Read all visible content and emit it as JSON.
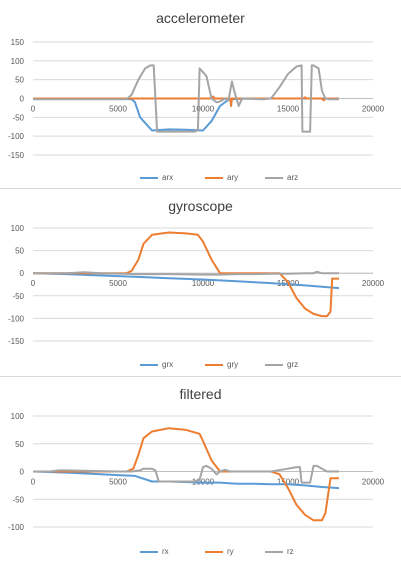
{
  "chart_data": [
    {
      "type": "line",
      "title": "accelerometer",
      "xlim": [
        0,
        20000
      ],
      "ylim": [
        -150,
        150
      ],
      "yticks": [
        150,
        100,
        50,
        0,
        -50,
        -100,
        -150
      ],
      "xticks": [
        0,
        5000,
        10000,
        15000,
        20000
      ],
      "grid": true,
      "legend_position": "bottom",
      "series": [
        {
          "name": "arx",
          "color": "#5b9bd5",
          "x": [
            0,
            5000,
            5800,
            6000,
            6300,
            7000,
            8000,
            9000,
            10000,
            10500,
            11000,
            11500,
            12000,
            13000,
            14000,
            15000,
            16000,
            17000,
            18000
          ],
          "y": [
            0,
            0,
            -2,
            -10,
            -50,
            -85,
            -82,
            -83,
            -85,
            -60,
            -20,
            -3,
            -1,
            0,
            0,
            0,
            0,
            0,
            0
          ]
        },
        {
          "name": "ary",
          "color": "#ed7d31",
          "x": [
            0,
            5000,
            6000,
            7000,
            8000,
            9000,
            10000,
            10500,
            10600,
            10700,
            11600,
            11650,
            11700,
            12000,
            13000,
            15000,
            15900,
            16000,
            16100,
            17000,
            17100,
            17200,
            18000
          ],
          "y": [
            0,
            0,
            0,
            0,
            0,
            0,
            0,
            0,
            5,
            0,
            0,
            -20,
            0,
            0,
            0,
            0,
            0,
            3,
            0,
            0,
            -5,
            0,
            0
          ],
          "color_alt": ""
        },
        {
          "name": "arz",
          "color": "#a5a5a5",
          "x": [
            0,
            5500,
            5800,
            6200,
            6600,
            6900,
            7100,
            7200,
            7300,
            8000,
            9000,
            9500,
            9700,
            9800,
            10200,
            10500,
            10800,
            11000,
            11300,
            11500,
            11700,
            11900,
            12100,
            12300,
            13500,
            14000,
            14500,
            15000,
            15500,
            15800,
            15850,
            16300,
            16400,
            16500,
            16800,
            17000,
            17200,
            17400,
            18000
          ],
          "y": [
            -2,
            -2,
            10,
            50,
            80,
            88,
            88,
            0,
            -88,
            -88,
            -88,
            -88,
            -85,
            80,
            60,
            0,
            -10,
            -8,
            0,
            -5,
            45,
            10,
            -20,
            0,
            -2,
            0,
            30,
            65,
            85,
            88,
            -88,
            -88,
            88,
            88,
            80,
            20,
            0,
            -2,
            -2
          ]
        }
      ]
    },
    {
      "type": "line",
      "title": "gyroscope",
      "xlim": [
        0,
        20000
      ],
      "ylim": [
        -150,
        100
      ],
      "yticks": [
        100,
        50,
        0,
        -50,
        -100,
        -150
      ],
      "xticks": [
        0,
        5000,
        10000,
        15000,
        20000
      ],
      "grid": true,
      "legend_position": "bottom",
      "series": [
        {
          "name": "grx",
          "color": "#5b9bd5",
          "x": [
            0,
            2000,
            4000,
            6000,
            8000,
            10000,
            12000,
            14000,
            16000,
            18000
          ],
          "y": [
            0,
            -2,
            -5,
            -8,
            -11,
            -14,
            -18,
            -22,
            -27,
            -33
          ]
        },
        {
          "name": "gry",
          "color": "#ed7d31",
          "x": [
            0,
            5000,
            5500,
            5800,
            6200,
            6500,
            7000,
            8000,
            9000,
            9700,
            10000,
            10500,
            11000,
            14500,
            15000,
            15500,
            16000,
            16500,
            17000,
            17300,
            17500,
            17600,
            18000
          ],
          "y": [
            0,
            0,
            0,
            5,
            30,
            65,
            85,
            90,
            88,
            85,
            70,
            30,
            0,
            0,
            -20,
            -55,
            -78,
            -90,
            -95,
            -95,
            -85,
            -12,
            -12
          ]
        },
        {
          "name": "grz",
          "color": "#a5a5a5",
          "x": [
            0,
            2000,
            3000,
            4000,
            6000,
            8000,
            10000,
            11000,
            12000,
            13000,
            14000,
            15000,
            16000,
            16500,
            16700,
            17000,
            18000
          ],
          "y": [
            0,
            0,
            2,
            0,
            -2,
            -2,
            -3,
            -3,
            -2,
            -2,
            -1,
            -1,
            0,
            0,
            3,
            0,
            0
          ]
        }
      ]
    },
    {
      "type": "line",
      "title": "filtered",
      "xlim": [
        0,
        20000
      ],
      "ylim": [
        -100,
        100
      ],
      "yticks": [
        100,
        50,
        0,
        -50,
        -100
      ],
      "xticks": [
        0,
        5000,
        10000,
        15000,
        20000
      ],
      "grid": true,
      "legend_position": "bottom",
      "series": [
        {
          "name": "rx",
          "color": "#5b9bd5",
          "x": [
            0,
            2000,
            4000,
            6000,
            7000,
            8000,
            10000,
            11000,
            12000,
            13000,
            14000,
            15000,
            16000,
            17000,
            18000
          ],
          "y": [
            0,
            -2,
            -5,
            -8,
            -18,
            -18,
            -20,
            -20,
            -22,
            -22,
            -23,
            -23,
            -25,
            -28,
            -30
          ]
        },
        {
          "name": "ry",
          "color": "#ed7d31",
          "x": [
            0,
            5000,
            5500,
            5900,
            6200,
            6500,
            7000,
            8000,
            9000,
            9800,
            10000,
            10500,
            11000,
            14000,
            14500,
            15000,
            15500,
            16000,
            16500,
            17000,
            17200,
            17500,
            18000
          ],
          "y": [
            0,
            0,
            0,
            5,
            30,
            60,
            72,
            78,
            75,
            68,
            55,
            20,
            0,
            0,
            -5,
            -30,
            -60,
            -78,
            -88,
            -88,
            -75,
            -12,
            -12
          ]
        },
        {
          "name": "rz",
          "color": "#a5a5a5",
          "x": [
            0,
            1000,
            1500,
            2000,
            5000,
            5800,
            6300,
            6500,
            7000,
            7200,
            7400,
            9000,
            9500,
            9800,
            10000,
            10200,
            10500,
            10800,
            11000,
            11300,
            11600,
            12000,
            13000,
            14000,
            15000,
            15500,
            15700,
            15800,
            16300,
            16500,
            16700,
            17000,
            17300,
            18000
          ],
          "y": [
            0,
            0,
            2,
            2,
            0,
            0,
            2,
            5,
            5,
            2,
            -18,
            -18,
            -18,
            -15,
            8,
            10,
            5,
            -5,
            0,
            3,
            0,
            0,
            0,
            0,
            5,
            8,
            8,
            -20,
            -20,
            10,
            10,
            5,
            0,
            0
          ]
        }
      ]
    }
  ]
}
